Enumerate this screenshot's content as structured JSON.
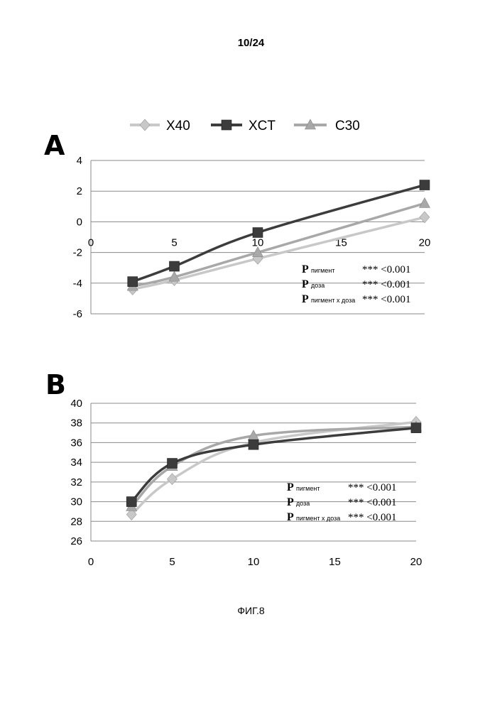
{
  "page_number": "10/24",
  "figure_caption": "ФИГ.8",
  "legend": [
    {
      "name": "X40",
      "color": "#c8c8c8",
      "marker": "diamond-icon"
    },
    {
      "name": "XCT",
      "color": "#3c3c3c",
      "marker": "square-icon"
    },
    {
      "name": "C30",
      "color": "#a8a8a8",
      "marker": "triangle-icon"
    }
  ],
  "chart_data": [
    {
      "type": "line",
      "panel_label": "A",
      "xlim": [
        0,
        20
      ],
      "ylim": [
        -6,
        4
      ],
      "xticks": [
        0,
        5,
        10,
        15,
        20
      ],
      "yticks": [
        -6,
        -4,
        -2,
        0,
        2,
        4
      ],
      "xticks_at_zero": true,
      "grid": true,
      "series": [
        {
          "name": "X40",
          "color": "#c8c8c8",
          "marker": "diamond",
          "x": [
            2.5,
            5,
            10,
            20
          ],
          "y": [
            -4.4,
            -3.8,
            -2.4,
            0.3
          ]
        },
        {
          "name": "XCT",
          "color": "#3c3c3c",
          "marker": "square",
          "x": [
            2.5,
            5,
            10,
            20
          ],
          "y": [
            -3.9,
            -2.9,
            -0.7,
            2.4
          ]
        },
        {
          "name": "C30",
          "color": "#a8a8a8",
          "marker": "triangle",
          "x": [
            2.5,
            5,
            10,
            20
          ],
          "y": [
            -4.2,
            -3.6,
            -2.0,
            1.2
          ]
        }
      ],
      "stats": [
        {
          "p": "P",
          "sub": "пигмент",
          "value": "*** <0.001"
        },
        {
          "p": "P",
          "sub": "доза",
          "value": "*** <0.001"
        },
        {
          "p": "P",
          "sub": "пигмент х доза",
          "value": "*** <0.001"
        }
      ]
    },
    {
      "type": "line",
      "panel_label": "B",
      "xlim": [
        0,
        20
      ],
      "ylim": [
        26,
        40
      ],
      "xticks": [
        0,
        5,
        10,
        15,
        20
      ],
      "yticks": [
        26,
        28,
        30,
        32,
        34,
        36,
        38,
        40
      ],
      "xticks_at_zero": false,
      "grid": true,
      "series": [
        {
          "name": "X40",
          "color": "#c8c8c8",
          "marker": "diamond",
          "x": [
            2.5,
            5,
            10,
            20
          ],
          "y": [
            28.7,
            32.3,
            36.0,
            38.1
          ]
        },
        {
          "name": "XCT",
          "color": "#3c3c3c",
          "marker": "square",
          "x": [
            2.5,
            5,
            10,
            20
          ],
          "y": [
            30.0,
            33.9,
            35.8,
            37.5
          ]
        },
        {
          "name": "C30",
          "color": "#a8a8a8",
          "marker": "triangle",
          "x": [
            2.5,
            5,
            10,
            20
          ],
          "y": [
            29.5,
            33.6,
            36.7,
            37.6
          ]
        }
      ],
      "stats": [
        {
          "p": "P",
          "sub": "пигмент",
          "value": "*** <0.001"
        },
        {
          "p": "P",
          "sub": "доза",
          "value": "*** <0.001"
        },
        {
          "p": "P",
          "sub": "пигмент х доза",
          "value": "*** <0.001"
        }
      ]
    }
  ]
}
